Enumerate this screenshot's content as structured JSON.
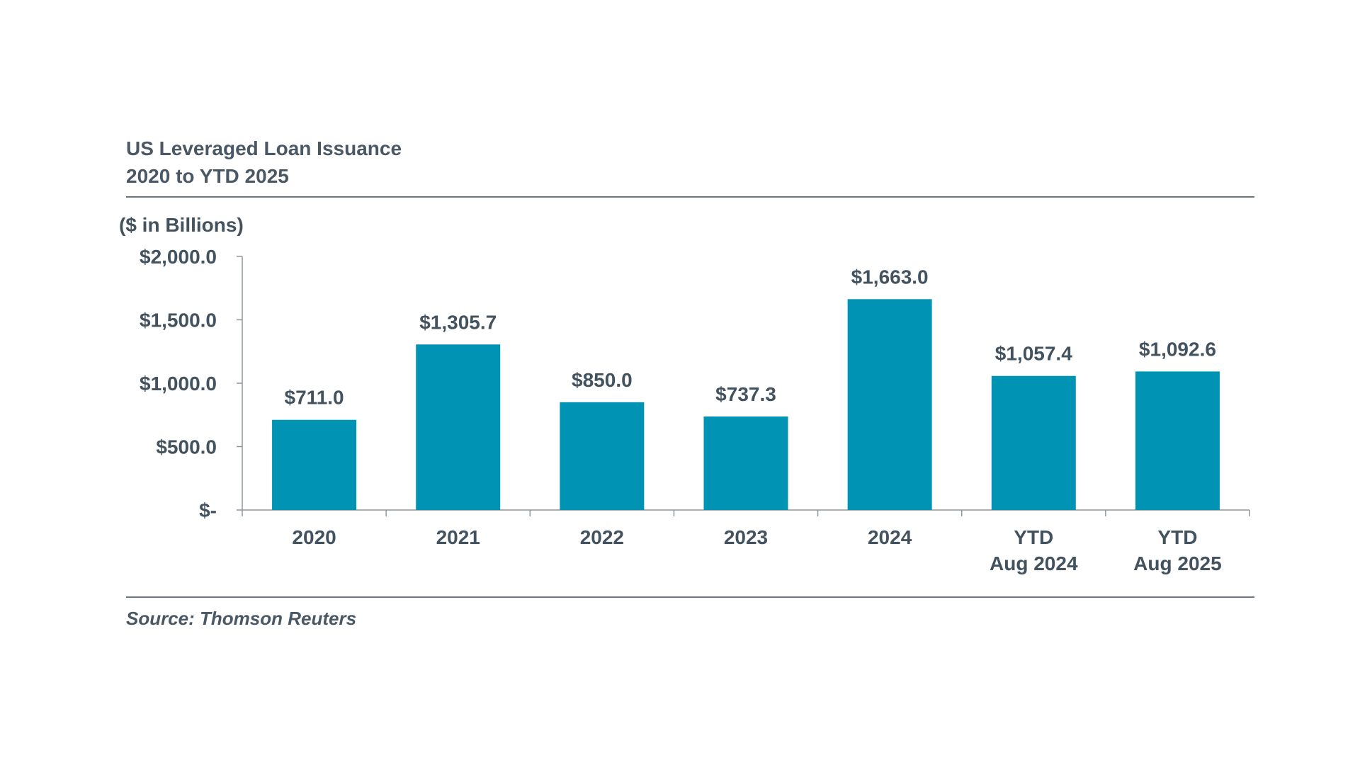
{
  "chart_title": [
    "US Leveraged Loan Issuance",
    "2020 to YTD 2025"
  ],
  "source": "Source: Thomson Reuters",
  "colors": {
    "bar": "#0193b4",
    "text": "#43525f",
    "axis": "#8e969d",
    "rule": "#6b7680"
  },
  "chart_data": {
    "type": "bar",
    "title": "US Leveraged Loan Issuance 2020 to YTD 2025",
    "ylabel": "($ in Billions)",
    "xlabel": "",
    "categories": [
      [
        "2020"
      ],
      [
        "2021"
      ],
      [
        "2022"
      ],
      [
        "2023"
      ],
      [
        "2024"
      ],
      [
        "YTD",
        "Aug 2024"
      ],
      [
        "YTD",
        "Aug 2025"
      ]
    ],
    "values": [
      711.0,
      1305.7,
      850.0,
      737.3,
      1663.0,
      1057.4,
      1092.6
    ],
    "data_labels": [
      "$711.0",
      "$1,305.7",
      "$850.0",
      "$737.3",
      "$1,663.0",
      "$1,057.4",
      "$1,092.6"
    ],
    "ylim": [
      0,
      2000
    ],
    "yticks": [
      0,
      500,
      1000,
      1500,
      2000
    ],
    "ytick_labels": [
      "$-",
      "$500.0",
      "$1,000.0",
      "$1,500.0",
      "$2,000.0"
    ],
    "grid": false,
    "legend": "none"
  }
}
